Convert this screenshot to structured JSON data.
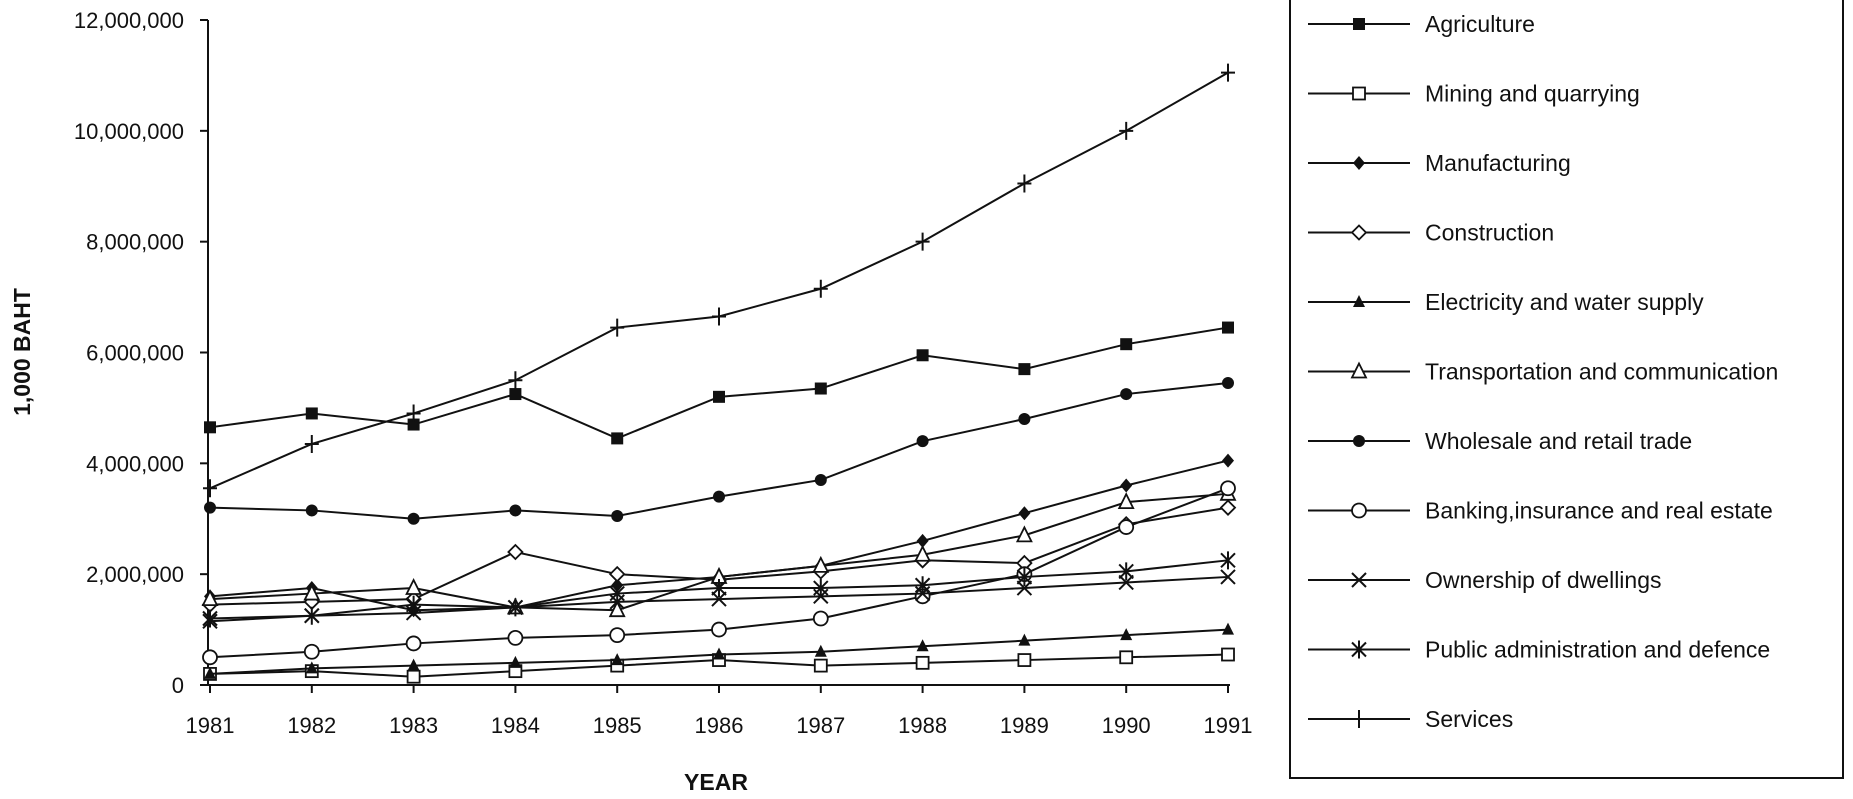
{
  "chart_data": {
    "type": "line",
    "title": "",
    "xlabel": "YEAR",
    "ylabel": "1,000 BAHT",
    "x": [
      1981,
      1982,
      1983,
      1984,
      1985,
      1986,
      1987,
      1988,
      1989,
      1990,
      1991
    ],
    "ylim": [
      0,
      12000000
    ],
    "yticks": [
      0,
      2000000,
      4000000,
      6000000,
      8000000,
      10000000,
      12000000
    ],
    "ytick_labels": [
      "0",
      "2,000,000",
      "4,000,000",
      "6,000,000",
      "8,000,000",
      "10,000,000",
      "12,000,000"
    ],
    "grid": false,
    "legend_position": "right",
    "series": [
      {
        "name": "Agriculture",
        "marker": "square-filled",
        "values": [
          4650000,
          4900000,
          4700000,
          5250000,
          4450000,
          5200000,
          5350000,
          5950000,
          5700000,
          6150000,
          6450000
        ]
      },
      {
        "name": "Mining and quarrying",
        "marker": "square-open",
        "values": [
          200000,
          250000,
          150000,
          250000,
          350000,
          450000,
          350000,
          400000,
          450000,
          500000,
          550000
        ]
      },
      {
        "name": "Manufacturing",
        "marker": "diamond-filled",
        "values": [
          1600000,
          1750000,
          1350000,
          1400000,
          1800000,
          1950000,
          2150000,
          2600000,
          3100000,
          3600000,
          4050000
        ]
      },
      {
        "name": "Construction",
        "marker": "diamond-open",
        "values": [
          1450000,
          1500000,
          1550000,
          2400000,
          2000000,
          1900000,
          2050000,
          2250000,
          2200000,
          2900000,
          3200000
        ]
      },
      {
        "name": "Electricity and water supply",
        "marker": "triangle-filled",
        "values": [
          200000,
          300000,
          350000,
          400000,
          450000,
          550000,
          600000,
          700000,
          800000,
          900000,
          1000000
        ]
      },
      {
        "name": "Transportation and communication",
        "marker": "triangle-open",
        "values": [
          1550000,
          1650000,
          1750000,
          1400000,
          1350000,
          1950000,
          2150000,
          2350000,
          2700000,
          3300000,
          3450000
        ]
      },
      {
        "name": "Wholesale and retail trade",
        "marker": "circle-filled",
        "values": [
          3200000,
          3150000,
          3000000,
          3150000,
          3050000,
          3400000,
          3700000,
          4400000,
          4800000,
          5250000,
          5450000
        ]
      },
      {
        "name": "Banking,insurance and real estate",
        "marker": "circle-open",
        "values": [
          500000,
          600000,
          750000,
          850000,
          900000,
          1000000,
          1200000,
          1600000,
          2000000,
          2850000,
          3550000
        ]
      },
      {
        "name": "Ownership of dwellings",
        "marker": "x",
        "values": [
          1150000,
          1250000,
          1300000,
          1400000,
          1500000,
          1550000,
          1600000,
          1650000,
          1750000,
          1850000,
          1950000
        ]
      },
      {
        "name": "Public administration and defence",
        "marker": "asterisk",
        "values": [
          1200000,
          1250000,
          1450000,
          1400000,
          1650000,
          1750000,
          1750000,
          1800000,
          1950000,
          2050000,
          2250000
        ]
      },
      {
        "name": "Services",
        "marker": "plus",
        "values": [
          3550000,
          4350000,
          4900000,
          5500000,
          6450000,
          6650000,
          7150000,
          8000000,
          9050000,
          10000000,
          11050000
        ]
      }
    ]
  }
}
